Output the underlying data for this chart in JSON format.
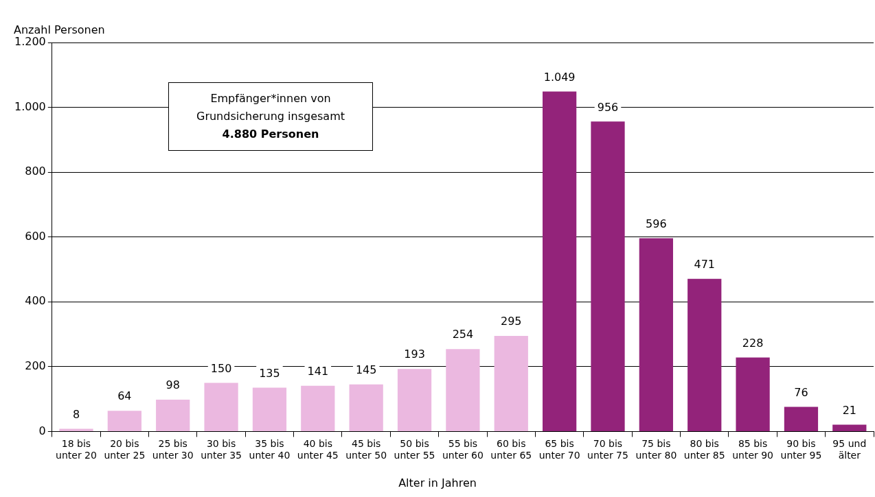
{
  "chart_data": {
    "type": "bar",
    "xlabel": "Alter in Jahren",
    "ylabel": "Anzahl Personen",
    "categories": [
      "18 bis\nunter 20",
      "20 bis\nunter 25",
      "25 bis\nunter 30",
      "30 bis\nunter 35",
      "35 bis\nunter 40",
      "40 bis\nunter 45",
      "45 bis\nunter 50",
      "50 bis\nunter 55",
      "55 bis\nunter 60",
      "60 bis\nunter 65",
      "65 bis\nunter 70",
      "70 bis\nunter 75",
      "75 bis\nunter 80",
      "80 bis\nunter 85",
      "85 bis\nunter 90",
      "90 bis\nunter 95",
      "95 und\nälter"
    ],
    "values": [
      8,
      64,
      98,
      150,
      135,
      141,
      145,
      193,
      254,
      295,
      1049,
      956,
      596,
      471,
      228,
      76,
      21
    ],
    "value_labels": [
      "8",
      "64",
      "98",
      "150",
      "135",
      "141",
      "145",
      "193",
      "254",
      "295",
      "1.049",
      "956",
      "596",
      "471",
      "228",
      "76",
      "21"
    ],
    "colors": [
      "#ebb8e0",
      "#ebb8e0",
      "#ebb8e0",
      "#ebb8e0",
      "#ebb8e0",
      "#ebb8e0",
      "#ebb8e0",
      "#ebb8e0",
      "#ebb8e0",
      "#ebb8e0",
      "#93237a",
      "#93237a",
      "#93237a",
      "#93237a",
      "#93237a",
      "#93237a",
      "#93237a"
    ],
    "ylim": [
      0,
      1200
    ],
    "yticks": [
      0,
      {
        "value": 200,
        "label": "200"
      },
      400,
      600,
      800,
      {
        "value": 1000,
        "label": "1.000"
      },
      {
        "value": 1200,
        "label": "1.200"
      }
    ],
    "grid": "y",
    "legend": false,
    "annotations": [
      "Empfänger*innen von\nGrundsicherung insgesamt",
      "4.880 Personen"
    ]
  }
}
